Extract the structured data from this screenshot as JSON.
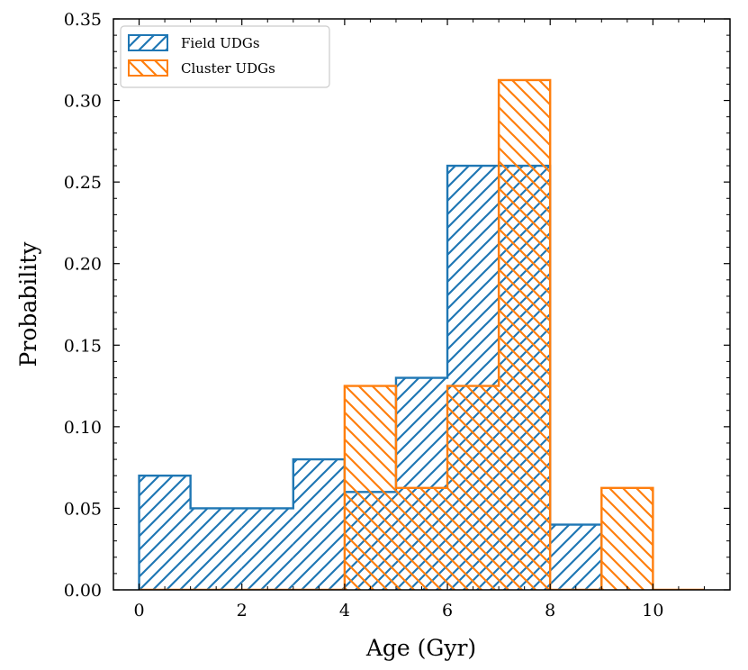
{
  "chart_data": {
    "type": "histogram",
    "xlabel": "Age (Gyr)",
    "ylabel": "Probability",
    "xlim": [
      -0.5,
      11.5
    ],
    "ylim": [
      0,
      0.35
    ],
    "xticks": [
      0,
      2,
      4,
      6,
      8,
      10
    ],
    "xtick_labels": [
      "0",
      "2",
      "4",
      "6",
      "8",
      "10"
    ],
    "yticks": [
      0.0,
      0.05,
      0.1,
      0.15,
      0.2,
      0.25,
      0.3,
      0.35
    ],
    "ytick_labels": [
      "0.00",
      "0.05",
      "0.10",
      "0.15",
      "0.20",
      "0.25",
      "0.30",
      "0.35"
    ],
    "legend_position": "top-left",
    "series": [
      {
        "name": "Field UDGs",
        "color": "#1f77b4",
        "hatch": "forward-diagonal",
        "bin_edges": [
          0,
          1,
          2,
          3,
          4,
          5,
          6,
          7,
          8,
          9
        ],
        "values": [
          0.07,
          0.05,
          0.05,
          0.08,
          0.06,
          0.13,
          0.26,
          0.26,
          0.04
        ]
      },
      {
        "name": "Cluster UDGs",
        "color": "#ff7f0e",
        "hatch": "back-diagonal",
        "bin_edges": [
          0,
          1,
          2,
          3,
          4,
          5,
          6,
          7,
          8,
          9,
          10,
          11
        ],
        "values": [
          0.0,
          0.0,
          0.0,
          0.0,
          0.125,
          0.0625,
          0.125,
          0.3125,
          0.0,
          0.0625,
          0.0
        ]
      }
    ]
  }
}
